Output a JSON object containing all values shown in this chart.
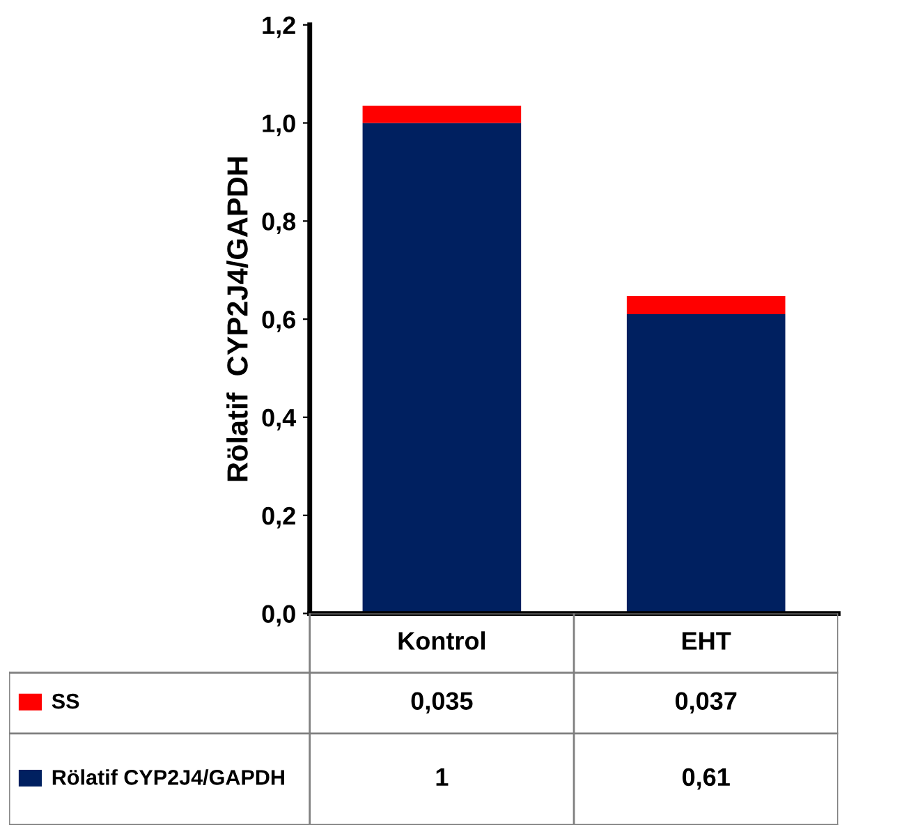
{
  "chart_data": {
    "type": "bar",
    "stacked": true,
    "ylabel": "Rölatif  CYP2J4/GAPDH",
    "categories": [
      "Kontrol",
      "EHT"
    ],
    "series": [
      {
        "name": "Rölatif CYP2J4/GAPDH",
        "color": "#002060",
        "values": [
          1,
          0.61
        ],
        "value_labels": [
          "1",
          "0,61"
        ]
      },
      {
        "name": "SS",
        "color": "#ff0000",
        "values": [
          0.035,
          0.037
        ],
        "value_labels": [
          "0,035",
          "0,037"
        ]
      }
    ],
    "ylim": [
      0,
      1.2
    ],
    "yticks": [
      {
        "value": 0,
        "label": "0,0"
      },
      {
        "value": 0.2,
        "label": "0,2"
      },
      {
        "value": 0.4,
        "label": "0,4"
      },
      {
        "value": 0.6,
        "label": "0,6"
      },
      {
        "value": 0.8,
        "label": "0,8"
      },
      {
        "value": 1.0,
        "label": "1,0"
      },
      {
        "value": 1.2,
        "label": "1,2"
      }
    ],
    "legend": "bottom",
    "grid": false
  }
}
